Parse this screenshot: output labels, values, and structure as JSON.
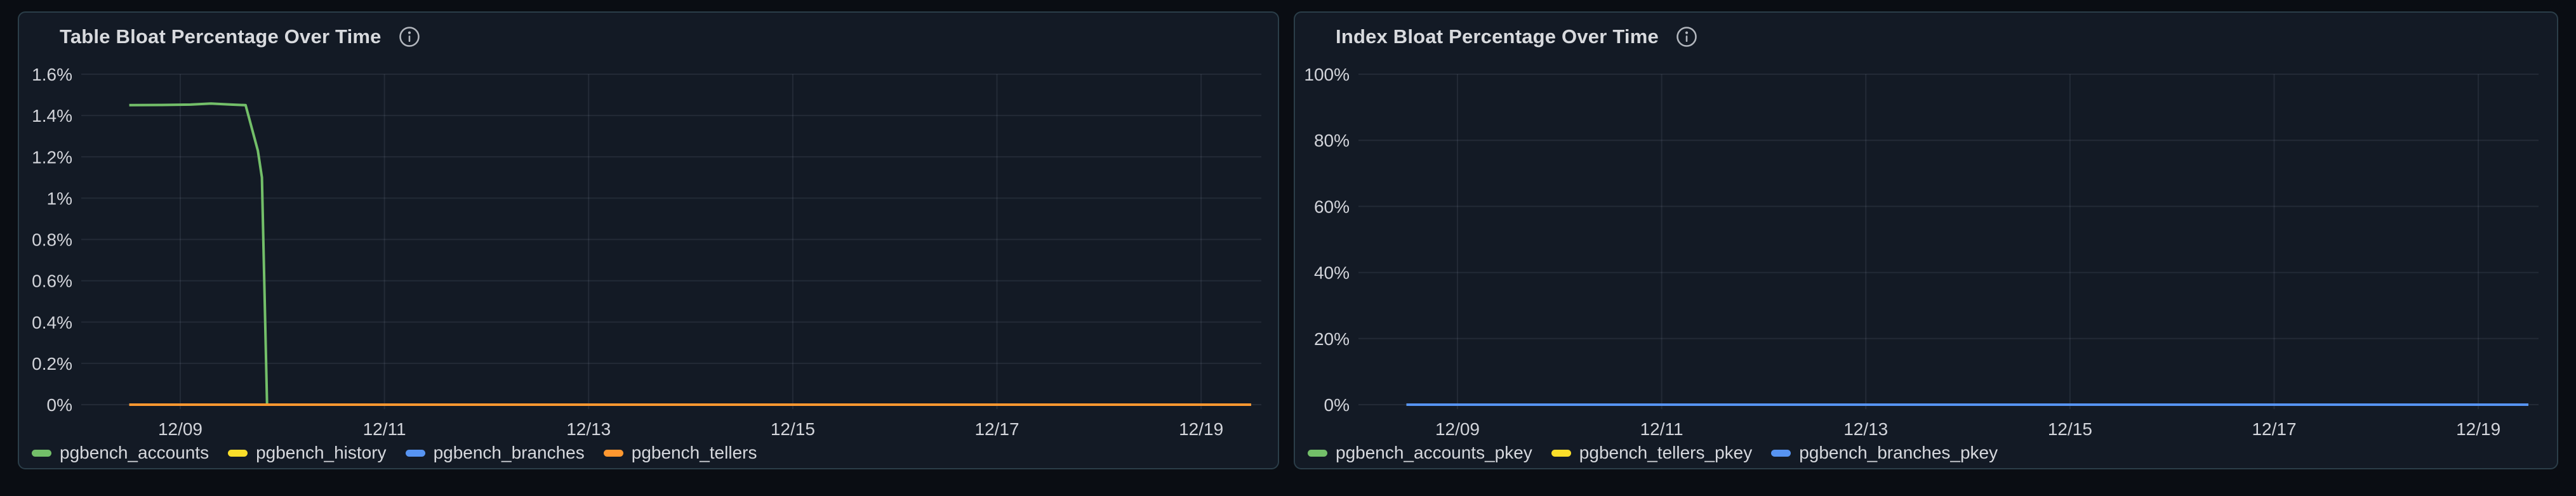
{
  "chart_data": [
    {
      "type": "line",
      "title": "Table Bloat Percentage Over Time",
      "xlabel": "",
      "ylabel": "",
      "x_unit": "day of December (MM/DD dates)",
      "y_unit": "percent",
      "x_domain_days": [
        8.03,
        19.59
      ],
      "x_ticks": [
        {
          "day": 9,
          "label": "12/09"
        },
        {
          "day": 11,
          "label": "12/11"
        },
        {
          "day": 13,
          "label": "12/13"
        },
        {
          "day": 15,
          "label": "12/15"
        },
        {
          "day": 17,
          "label": "12/17"
        },
        {
          "day": 19,
          "label": "12/19"
        }
      ],
      "ylim": [
        0,
        1.6
      ],
      "y_ticks": [
        {
          "value": 0,
          "label": "0%"
        },
        {
          "value": 0.2,
          "label": "0.2%"
        },
        {
          "value": 0.4,
          "label": "0.4%"
        },
        {
          "value": 0.6,
          "label": "0.6%"
        },
        {
          "value": 0.8,
          "label": "0.8%"
        },
        {
          "value": 1.0,
          "label": "1%"
        },
        {
          "value": 1.2,
          "label": "1.2%"
        },
        {
          "value": 1.4,
          "label": "1.4%"
        },
        {
          "value": 1.6,
          "label": "1.6%"
        }
      ],
      "grid": true,
      "legend_position": "bottom",
      "series": [
        {
          "name": "pgbench_accounts",
          "color": "#73BF69",
          "points": [
            [
              8.5,
              1.45
            ],
            [
              8.8,
              1.451
            ],
            [
              9.1,
              1.453
            ],
            [
              9.3,
              1.458
            ],
            [
              9.5,
              1.453
            ],
            [
              9.64,
              1.45
            ],
            [
              9.76,
              1.23
            ],
            [
              9.8,
              1.1
            ],
            [
              9.85,
              0
            ],
            [
              19.49,
              0
            ]
          ]
        },
        {
          "name": "pgbench_history",
          "color": "#FADE2A",
          "points": [
            [
              8.5,
              0
            ],
            [
              19.49,
              0
            ]
          ]
        },
        {
          "name": "pgbench_branches",
          "color": "#5794F2",
          "points": [
            [
              8.5,
              0
            ],
            [
              19.49,
              0
            ]
          ]
        },
        {
          "name": "pgbench_tellers",
          "color": "#FF9830",
          "points": [
            [
              8.5,
              0
            ],
            [
              19.49,
              0
            ]
          ]
        }
      ]
    },
    {
      "type": "line",
      "title": "Index Bloat Percentage Over Time",
      "xlabel": "",
      "ylabel": "",
      "x_unit": "day of December (MM/DD dates)",
      "y_unit": "percent",
      "x_domain_days": [
        8.03,
        19.59
      ],
      "x_ticks": [
        {
          "day": 9,
          "label": "12/09"
        },
        {
          "day": 11,
          "label": "12/11"
        },
        {
          "day": 13,
          "label": "12/13"
        },
        {
          "day": 15,
          "label": "12/15"
        },
        {
          "day": 17,
          "label": "12/17"
        },
        {
          "day": 19,
          "label": "12/19"
        }
      ],
      "ylim": [
        0,
        100
      ],
      "y_ticks": [
        {
          "value": 0,
          "label": "0%"
        },
        {
          "value": 20,
          "label": "20%"
        },
        {
          "value": 40,
          "label": "40%"
        },
        {
          "value": 60,
          "label": "60%"
        },
        {
          "value": 80,
          "label": "80%"
        },
        {
          "value": 100,
          "label": "100%"
        }
      ],
      "grid": true,
      "legend_position": "bottom",
      "series": [
        {
          "name": "pgbench_accounts_pkey",
          "color": "#73BF69",
          "points": [
            [
              8.5,
              0
            ],
            [
              19.49,
              0
            ]
          ]
        },
        {
          "name": "pgbench_tellers_pkey",
          "color": "#FADE2A",
          "points": [
            [
              8.5,
              0
            ],
            [
              19.49,
              0
            ]
          ]
        },
        {
          "name": "pgbench_branches_pkey",
          "color": "#5794F2",
          "points": [
            [
              8.5,
              0
            ],
            [
              19.49,
              0
            ]
          ]
        }
      ]
    }
  ]
}
